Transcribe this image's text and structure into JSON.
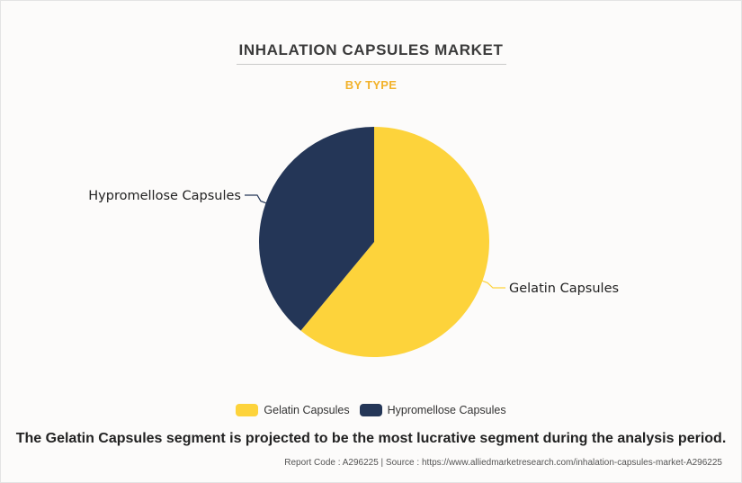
{
  "header": {
    "title": "INHALATION CAPSULES MARKET",
    "subtitle": "BY TYPE"
  },
  "chart_data": {
    "type": "pie",
    "categories": [
      "Gelatin Capsules",
      "Hypromellose Capsules"
    ],
    "values": [
      61,
      39
    ],
    "colors": [
      "#fdd33b",
      "#243657"
    ],
    "legend_position": "bottom"
  },
  "legend": {
    "items": [
      {
        "label": "Gelatin Capsules",
        "color": "#fdd33b"
      },
      {
        "label": "Hypromellose Capsules",
        "color": "#243657"
      }
    ]
  },
  "caption": "The Gelatin Capsules segment is projected to be the most lucrative segment during the analysis period.",
  "footer": {
    "text": "Report Code : A296225  |  Source : https://www.alliedmarketresearch.com/inhalation-capsules-market-A296225"
  }
}
